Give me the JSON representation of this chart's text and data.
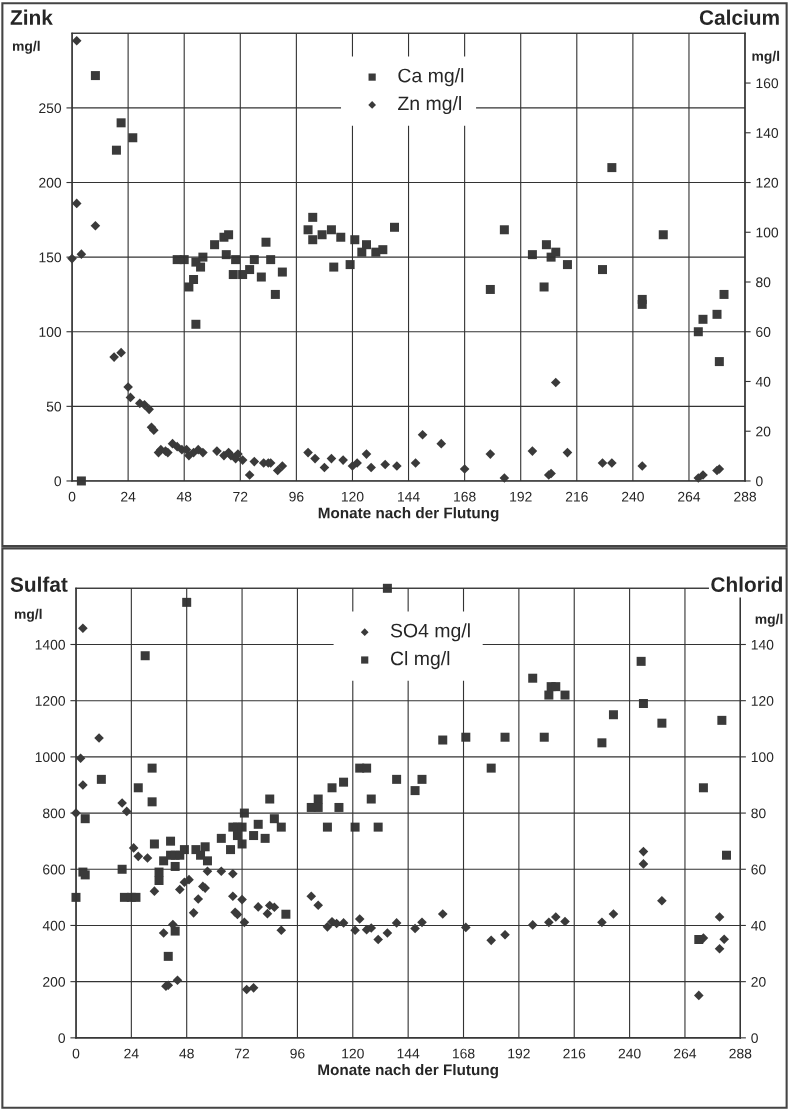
{
  "chart_data": [
    {
      "type": "scatter",
      "ylabel": "Zink",
      "y2label": "Calcium",
      "xlabel": "Monate nach der Flutung",
      "annotations": [
        "mg/l",
        "mg/l"
      ],
      "xlim": [
        0,
        288
      ],
      "xticks": [
        0,
        24,
        48,
        72,
        96,
        120,
        144,
        168,
        192,
        216,
        240,
        264,
        288
      ],
      "ylim": [
        0,
        300
      ],
      "yticks": [
        0,
        50,
        100,
        150,
        200,
        250
      ],
      "y2lim": [
        0,
        180
      ],
      "y2ticks": [
        0,
        20,
        40,
        60,
        80,
        100,
        120,
        140,
        160
      ],
      "grid": true,
      "legend": "top",
      "series": [
        {
          "name": "Ca mg/l",
          "axis": "y2",
          "marker": "square",
          "color": "#3a3a3a",
          "x": [
            4,
            10,
            19,
            21,
            26,
            45,
            48,
            50,
            52,
            53,
            53,
            55,
            56,
            61,
            65,
            67,
            66,
            69,
            70,
            73,
            76,
            78,
            81,
            83,
            85,
            87,
            90,
            101,
            103,
            103,
            107,
            111,
            112,
            115,
            119,
            121,
            124,
            126,
            130,
            133,
            138,
            179,
            185,
            197,
            202,
            203,
            205,
            207,
            212,
            227,
            231,
            244,
            244,
            253,
            268,
            270,
            276,
            277,
            279
          ],
          "values": [
            0,
            163,
            133,
            144,
            138,
            89,
            89,
            78,
            81,
            63,
            88,
            86,
            90,
            95,
            98,
            99,
            91,
            83,
            89,
            83,
            85,
            89,
            82,
            96,
            89,
            75,
            84,
            101,
            106,
            97,
            99,
            101,
            86,
            98,
            87,
            97,
            92,
            95,
            92,
            93,
            102,
            77,
            101,
            91,
            78,
            95,
            90,
            92,
            87,
            85,
            126,
            73,
            71,
            99,
            60,
            65,
            67,
            48,
            75
          ]
        },
        {
          "name": "Zn mg/l",
          "marker": "diamond",
          "color": "#3a3a3a",
          "x": [
            0,
            2,
            2,
            4,
            10,
            18,
            21,
            24,
            25,
            29,
            31,
            33,
            34,
            35,
            37,
            38,
            40,
            41,
            43,
            45,
            47,
            49,
            50,
            52,
            54,
            56,
            62,
            65,
            67,
            68,
            70,
            71,
            73,
            76,
            78,
            82,
            84,
            85,
            88,
            90,
            101,
            104,
            108,
            111,
            116,
            120,
            122,
            126,
            128,
            134,
            139,
            147,
            150,
            158,
            168,
            179,
            185,
            197,
            204,
            205,
            207,
            212,
            227,
            231,
            244,
            268,
            270,
            276,
            277
          ],
          "values": [
            149,
            295,
            186,
            152,
            171,
            83,
            86,
            63,
            56,
            52,
            51,
            48,
            36,
            34,
            19,
            21,
            20,
            19,
            25,
            23,
            21,
            21,
            17,
            19,
            21,
            19,
            20,
            17,
            19,
            17,
            15,
            18,
            14,
            4,
            13,
            12,
            12,
            12,
            7,
            10,
            19,
            15,
            9,
            15,
            14,
            10,
            12,
            18,
            9,
            11,
            10,
            12,
            31,
            25,
            8,
            18,
            2,
            20,
            4,
            5,
            66,
            19,
            12,
            12,
            10,
            2,
            4,
            7,
            8
          ]
        }
      ]
    },
    {
      "type": "scatter",
      "ylabel": "Sulfat",
      "y2label": "Chlorid",
      "xlabel": "Monate nach der Flutung",
      "annotations": [
        "mg/l",
        "mg/l"
      ],
      "xlim": [
        0,
        288
      ],
      "xticks": [
        0,
        24,
        48,
        72,
        96,
        120,
        144,
        168,
        192,
        216,
        240,
        264,
        288
      ],
      "ylim": [
        0,
        1600
      ],
      "yticks": [
        0,
        200,
        400,
        600,
        800,
        1000,
        1200,
        1400
      ],
      "y2lim": [
        0,
        160
      ],
      "y2ticks": [
        0,
        20,
        40,
        60,
        80,
        100,
        120,
        140
      ],
      "grid": true,
      "legend": "top",
      "series": [
        {
          "name": "SO4 mg/l",
          "marker": "diamond",
          "color": "#3a3a3a",
          "x": [
            0,
            2,
            3,
            3,
            10,
            20,
            22,
            25,
            27,
            31,
            34,
            38,
            39,
            40,
            42,
            44,
            45,
            47,
            49,
            51,
            53,
            55,
            56,
            57,
            63,
            68,
            68,
            69,
            70,
            72,
            73,
            74,
            77,
            79,
            83,
            84,
            86,
            89,
            102,
            105,
            109,
            111,
            113,
            116,
            121,
            123,
            126,
            128,
            131,
            135,
            139,
            147,
            150,
            159,
            169,
            180,
            186,
            198,
            205,
            208,
            212,
            228,
            233,
            246,
            246,
            254,
            270,
            272,
            279,
            279,
            281
          ],
          "values": [
            800,
            995,
            1458,
            900,
            1067,
            836,
            806,
            676,
            646,
            640,
            522,
            373,
            184,
            187,
            403,
            205,
            528,
            554,
            563,
            445,
            494,
            539,
            533,
            593,
            593,
            584,
            504,
            447,
            439,
            492,
            411,
            172,
            178,
            466,
            442,
            471,
            465,
            383,
            504,
            472,
            395,
            413,
            407,
            409,
            383,
            423,
            385,
            391,
            350,
            373,
            409,
            389,
            411,
            441,
            393,
            347,
            367,
            402,
            411,
            430,
            414,
            411,
            441,
            663,
            619,
            488,
            151,
            355,
            430,
            317,
            351
          ]
        },
        {
          "name": "Cl mg/l",
          "axis": "y2",
          "marker": "square",
          "color": "#3a3a3a",
          "x": [
            0,
            3,
            4,
            4,
            11,
            20,
            21,
            24,
            26,
            27,
            30,
            33,
            33,
            34,
            36,
            36,
            38,
            40,
            41,
            41,
            43,
            43,
            43,
            45,
            47,
            48,
            52,
            54,
            56,
            57,
            63,
            67,
            68,
            70,
            70,
            72,
            72,
            73,
            77,
            79,
            82,
            84,
            86,
            89,
            91,
            102,
            105,
            105,
            109,
            111,
            114,
            116,
            121,
            123,
            126,
            128,
            131,
            135,
            139,
            147,
            150,
            159,
            169,
            180,
            186,
            198,
            203,
            205,
            206,
            208,
            212,
            228,
            233,
            245,
            246,
            254,
            270,
            272,
            280,
            282
          ],
          "values": [
            50,
            59,
            58,
            78,
            92,
            60,
            50,
            50,
            50,
            89,
            136,
            96,
            84,
            69,
            59,
            56,
            63,
            29,
            70,
            65,
            65,
            61,
            38,
            65,
            67,
            155,
            67,
            65,
            68,
            63,
            71,
            67,
            75,
            75,
            72,
            75,
            69,
            80,
            72,
            76,
            71,
            85,
            78,
            75,
            44,
            82,
            85,
            82,
            75,
            89,
            82,
            91,
            75,
            96,
            96,
            85,
            75,
            160,
            92,
            88,
            92,
            106,
            107,
            96,
            107,
            128,
            107,
            122,
            125,
            125,
            122,
            105,
            115,
            134,
            119,
            112,
            35,
            89,
            113,
            65
          ]
        }
      ]
    }
  ]
}
